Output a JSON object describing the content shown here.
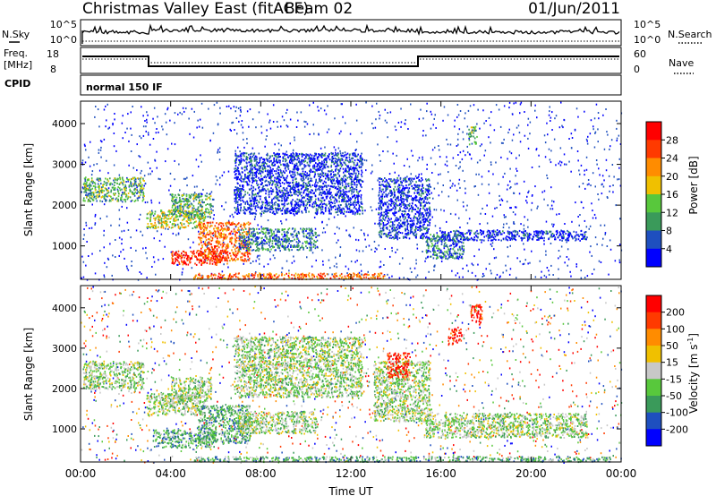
{
  "header": {
    "title": "Christmas Valley East (fitACF)",
    "beam": "Beam 02",
    "date": "01/Jun/2011"
  },
  "strips": {
    "nsky": {
      "left_label": "N.Sky",
      "left_ticks": [
        "10^5",
        "10^0"
      ],
      "right_ticks": [
        "10^5",
        "10^0"
      ],
      "right_label": "N.Search"
    },
    "freq": {
      "left_label_1": "Freq.",
      "left_label_2": "[MHz]",
      "left_ticks": [
        "18",
        "8"
      ],
      "right_ticks": [
        "60",
        "0"
      ],
      "right_label": "Nave"
    },
    "cpid": {
      "label": "CPID",
      "mode": "normal 150 IF"
    }
  },
  "chart_data": [
    {
      "type": "heatmap",
      "panel": "power",
      "ylabel": "Slant Range [km]",
      "yticks": [
        1000,
        2000,
        3000,
        4000
      ],
      "ylim": [
        180,
        4550
      ],
      "xlim_hours": [
        0,
        24
      ],
      "colorbar": {
        "label": "Power [dB]",
        "ticks": [
          "4",
          "8",
          "12",
          "16",
          "20",
          "24",
          "28"
        ],
        "colors": [
          "#0000ff",
          "#1e4fbf",
          "#3a9a5a",
          "#58c83c",
          "#f0c000",
          "#ff8c00",
          "#ff3a00",
          "#ff0000"
        ]
      },
      "regions": [
        {
          "t0": 0.1,
          "t1": 2.8,
          "r0": 2100,
          "r1": 2700,
          "level": 3
        },
        {
          "t0": 2.9,
          "t1": 5.5,
          "r0": 1450,
          "r1": 1900,
          "level": 4
        },
        {
          "t0": 4.0,
          "t1": 5.8,
          "r0": 1700,
          "r1": 2300,
          "level": 3
        },
        {
          "t0": 5.2,
          "t1": 7.5,
          "r0": 650,
          "r1": 1600,
          "level": 6
        },
        {
          "t0": 4.0,
          "t1": 6.5,
          "r0": 550,
          "r1": 900,
          "level": 7
        },
        {
          "t0": 7.0,
          "t1": 10.5,
          "r0": 900,
          "r1": 1450,
          "level": 2
        },
        {
          "t0": 6.8,
          "t1": 12.5,
          "r0": 1800,
          "r1": 3300,
          "level": 1
        },
        {
          "t0": 13.2,
          "t1": 15.5,
          "r0": 1200,
          "r1": 2700,
          "level": 1
        },
        {
          "t0": 15.3,
          "t1": 17.0,
          "r0": 700,
          "r1": 1300,
          "level": 2
        },
        {
          "t0": 16.0,
          "t1": 22.5,
          "r0": 1150,
          "r1": 1400,
          "level": 1
        },
        {
          "t0": 5.0,
          "t1": 13.5,
          "r0": 200,
          "r1": 350,
          "level": 6
        },
        {
          "t0": 17.2,
          "t1": 17.6,
          "r0": 3500,
          "r1": 3950,
          "level": 3
        }
      ]
    },
    {
      "type": "heatmap",
      "panel": "velocity",
      "ylabel": "Slant Range [km]",
      "yticks": [
        1000,
        2000,
        3000,
        4000
      ],
      "ylim": [
        180,
        4550
      ],
      "xlim_hours": [
        0,
        24
      ],
      "xticks": [
        "00:00",
        "04:00",
        "08:00",
        "12:00",
        "16:00",
        "20:00",
        "00:00"
      ],
      "xlabel": "Time UT",
      "colorbar": {
        "label": "Velocity [m s",
        "label_sup": "-1",
        "label_end": "]",
        "ticks": [
          "200",
          "100",
          "50",
          "15",
          "-15",
          "-50",
          "-100",
          "-200"
        ],
        "colors": [
          "#0000ff",
          "#1e4fbf",
          "#3a9a5a",
          "#58c83c",
          "#c8c8c8",
          "#f0c000",
          "#ff8c00",
          "#ff3a00",
          "#ff0000"
        ]
      },
      "regions": [
        {
          "t0": 0.1,
          "t1": 2.8,
          "r0": 2000,
          "r1": 2700,
          "level": 4
        },
        {
          "t0": 2.9,
          "t1": 5.5,
          "r0": 1350,
          "r1": 1900,
          "level": 4
        },
        {
          "t0": 4.0,
          "t1": 5.8,
          "r0": 1700,
          "r1": 2300,
          "level": 4
        },
        {
          "t0": 5.2,
          "t1": 7.5,
          "r0": 650,
          "r1": 1600,
          "level": 3
        },
        {
          "t0": 3.2,
          "t1": 6.0,
          "r0": 550,
          "r1": 1000,
          "level": 3
        },
        {
          "t0": 7.0,
          "t1": 10.5,
          "r0": 900,
          "r1": 1450,
          "level": 4
        },
        {
          "t0": 6.8,
          "t1": 12.5,
          "r0": 1800,
          "r1": 3300,
          "level": 4
        },
        {
          "t0": 13.0,
          "t1": 15.5,
          "r0": 1200,
          "r1": 2700,
          "level": 4
        },
        {
          "t0": 15.3,
          "t1": 22.5,
          "r0": 800,
          "r1": 1400,
          "level": 4
        },
        {
          "t0": 13.6,
          "t1": 14.6,
          "r0": 2300,
          "r1": 2900,
          "level": 8
        },
        {
          "t0": 16.3,
          "t1": 16.9,
          "r0": 3100,
          "r1": 3500,
          "level": 8
        },
        {
          "t0": 17.3,
          "t1": 17.8,
          "r0": 3600,
          "r1": 4100,
          "level": 8
        },
        {
          "t0": 5.0,
          "t1": 23.5,
          "r0": 200,
          "r1": 330,
          "level": 3
        }
      ]
    }
  ]
}
